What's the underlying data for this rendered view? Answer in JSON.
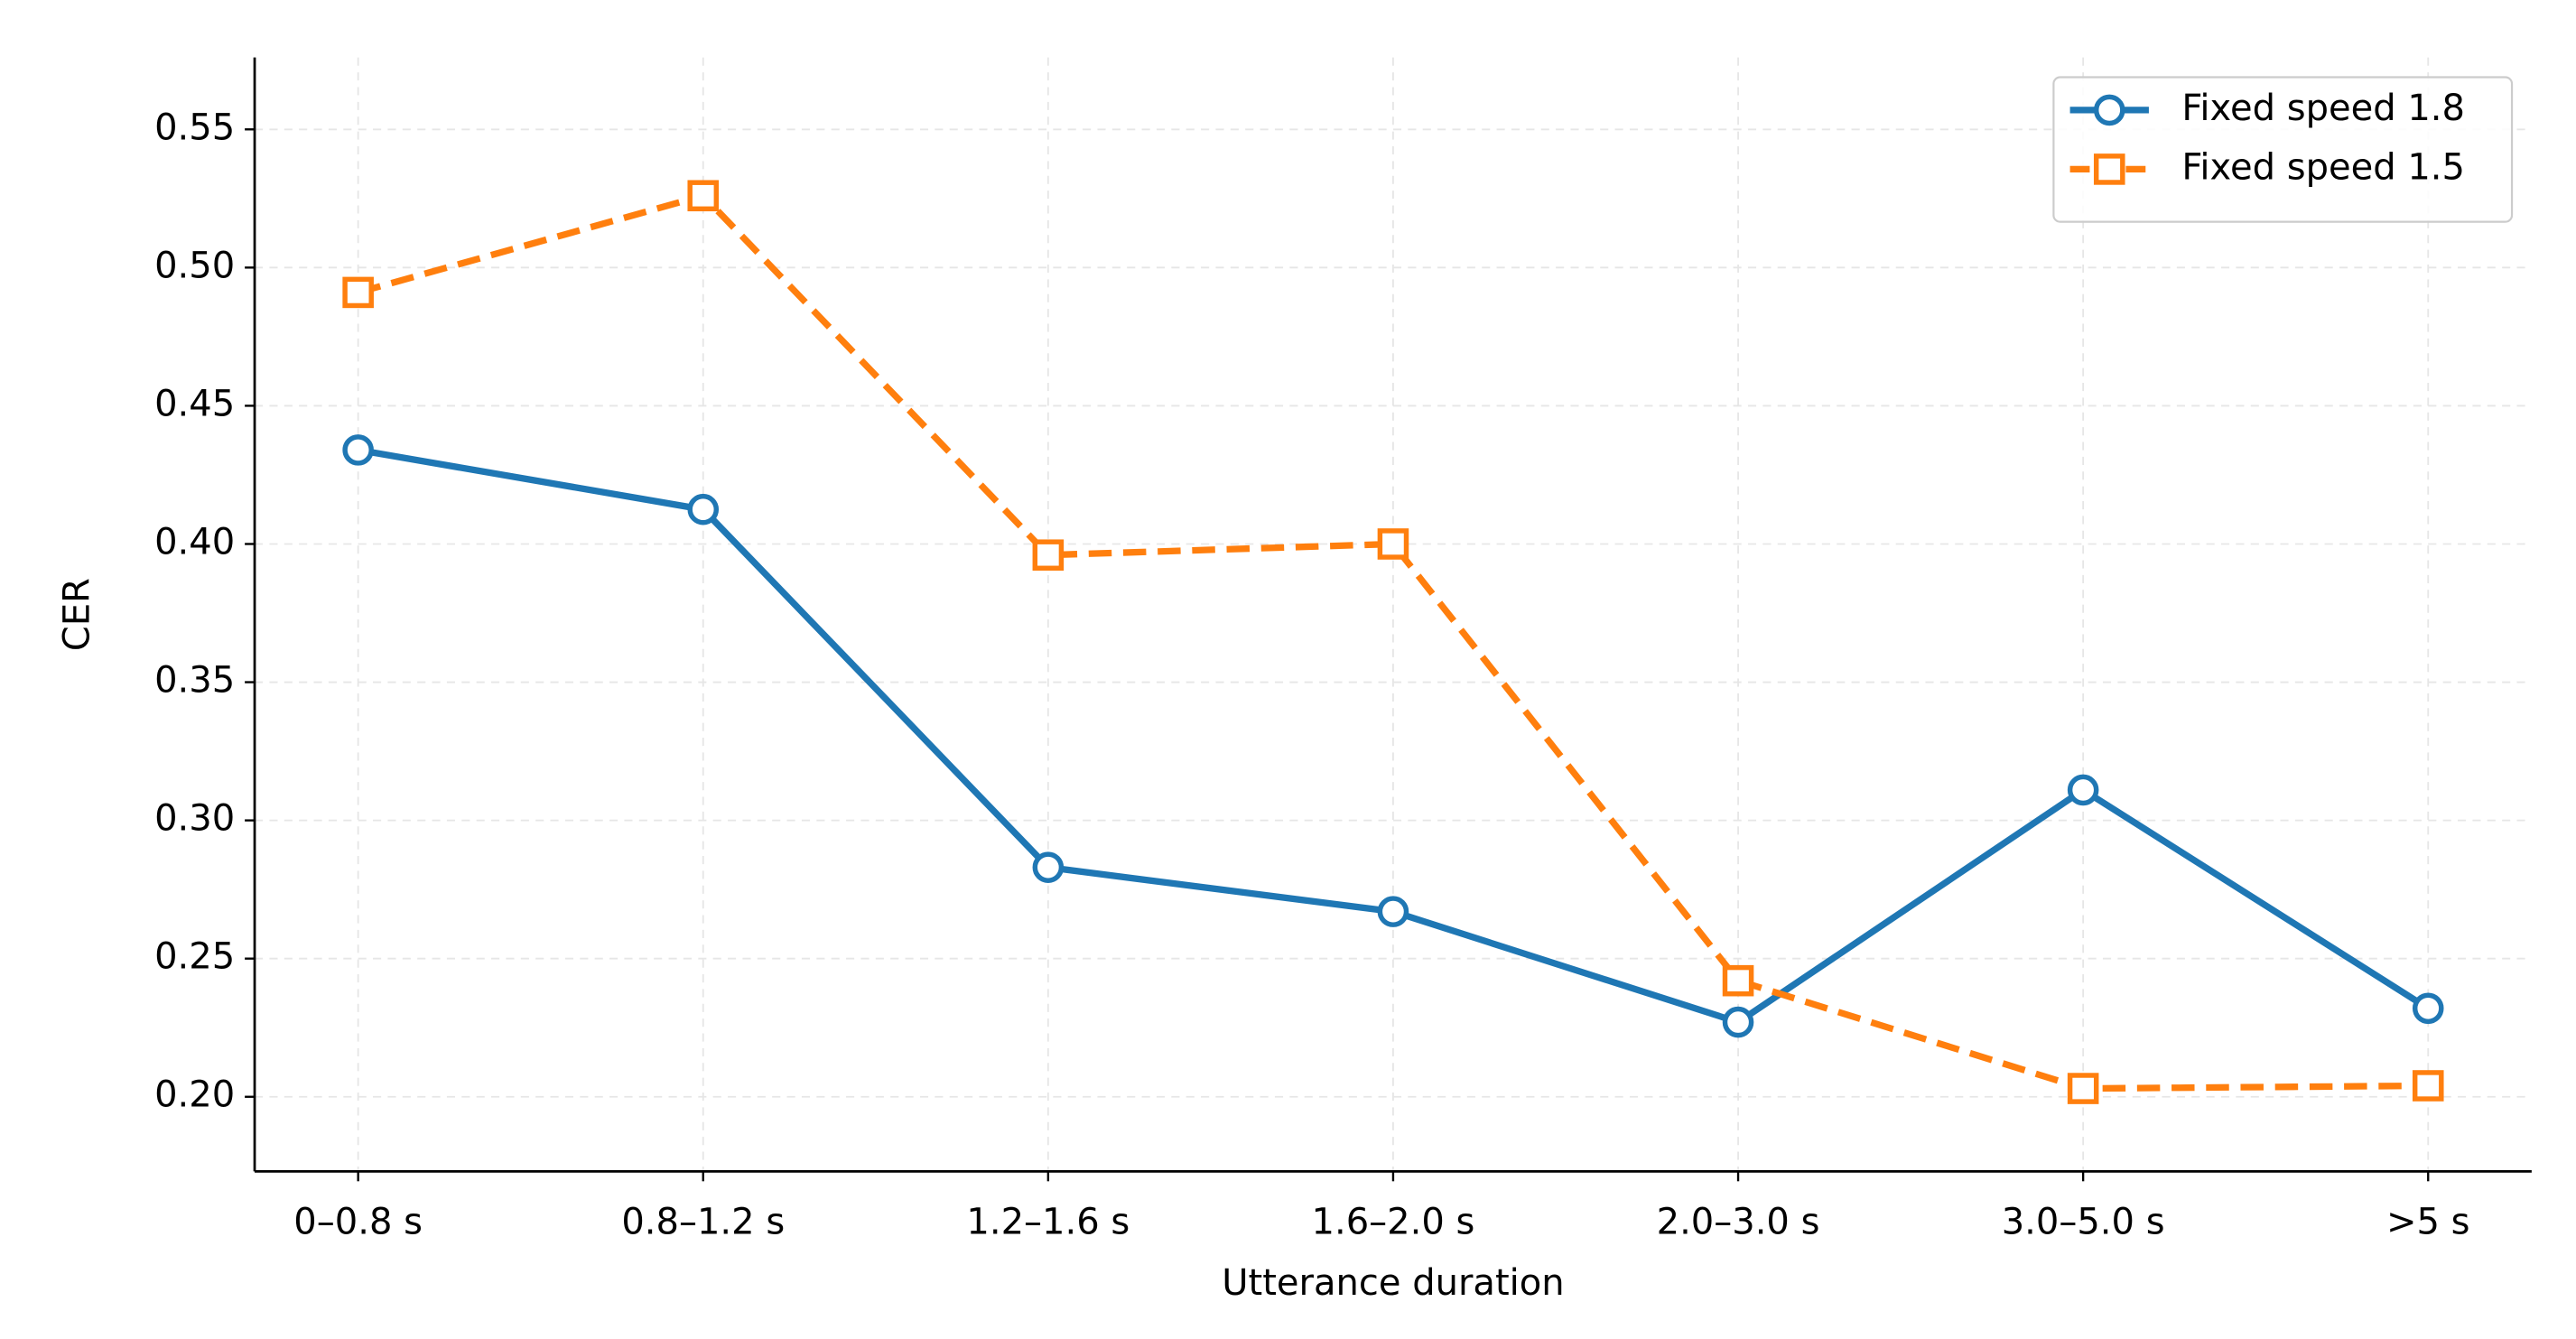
{
  "chart_data": {
    "type": "line",
    "x_label": "Utterance duration",
    "y_label": "CER",
    "categories": [
      "0–0.8 s",
      "0.8–1.2 s",
      "1.2–1.6 s",
      "1.6–2.0 s",
      "2.0–3.0 s",
      "3.0–5.0 s",
      ">5 s"
    ],
    "series": [
      {
        "name": "Fixed speed 1.8",
        "color": "#1f77b4",
        "marker": "circle",
        "dashed": false,
        "values": [
          0.434,
          0.4125,
          0.283,
          0.267,
          0.227,
          0.311,
          0.232
        ]
      },
      {
        "name": "Fixed speed 1.5",
        "color": "#ff7f0e",
        "marker": "square",
        "dashed": true,
        "values": [
          0.491,
          0.526,
          0.396,
          0.4,
          0.242,
          0.203,
          0.204
        ]
      }
    ],
    "ylim": [
      0.173,
      0.576
    ],
    "yticks": [
      {
        "value": 0.2,
        "label": "0.20"
      },
      0.25,
      {
        "value": 0.3,
        "label": "0.30"
      },
      0.35,
      {
        "value": 0.4,
        "label": "0.40"
      },
      0.45,
      {
        "value": 0.5,
        "label": "0.50"
      },
      0.55
    ],
    "grid": true,
    "legend": "upper right"
  }
}
